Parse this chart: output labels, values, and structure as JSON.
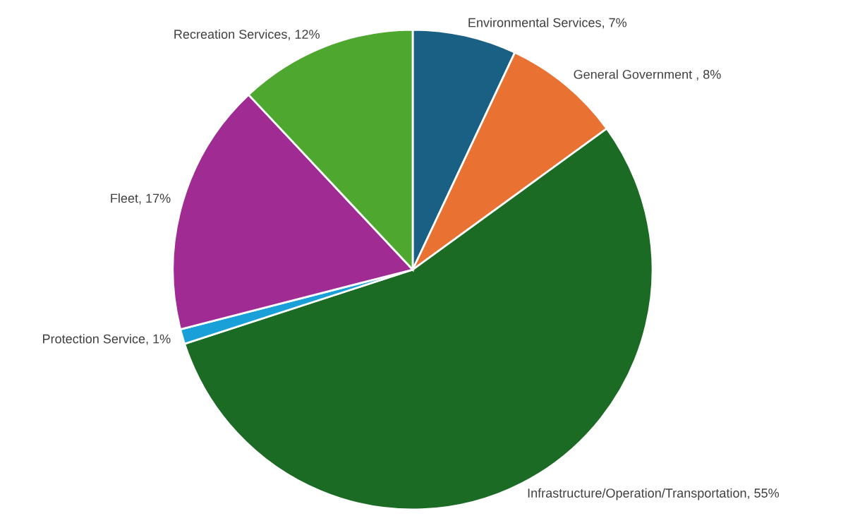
{
  "chart_data": {
    "type": "pie",
    "categories": [
      "Environmental Services",
      "General Government ",
      "Infrastructure/Operation/Transportation",
      "Protection Service",
      "Fleet",
      "Recreation Services"
    ],
    "values": [
      7,
      8,
      55,
      1,
      17,
      12
    ],
    "value_labels": [
      "7%",
      "8%",
      "55%",
      "1%",
      "17%",
      "12%"
    ],
    "colors": [
      "#196084",
      "#e97132",
      "#1b6b24",
      "#1aa0d8",
      "#a02b93",
      "#4ea72e"
    ],
    "legend": false
  }
}
